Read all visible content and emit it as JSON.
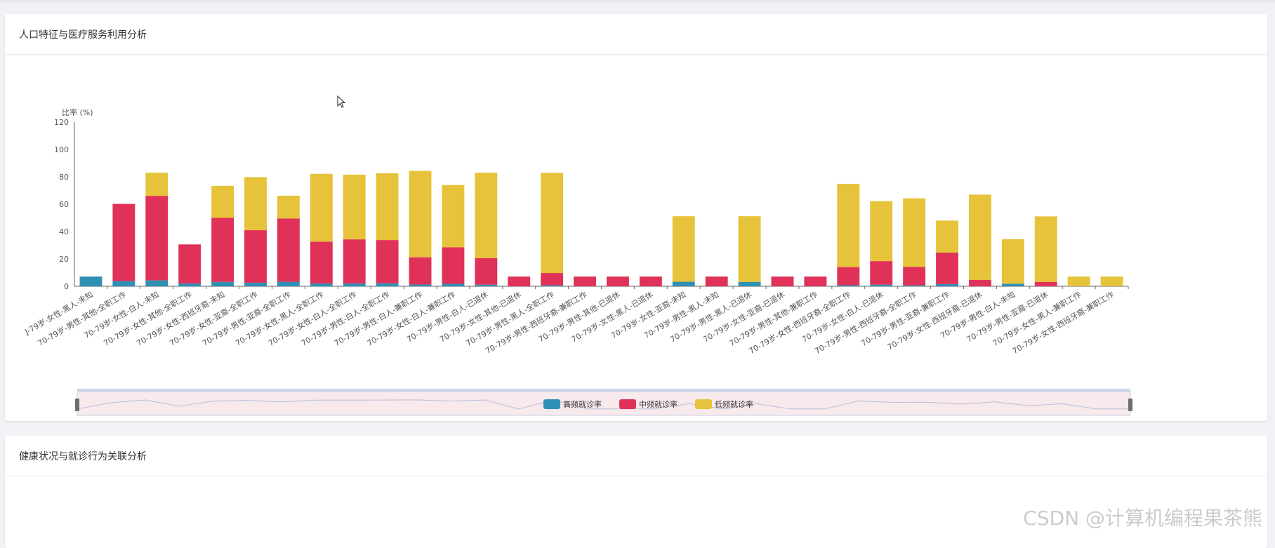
{
  "card1": {
    "title": "人口特征与医疗服务利用分析"
  },
  "card2": {
    "title": "健康状况与就诊行为关联分析"
  },
  "watermark": "CSDN @计算机编程果茶熊",
  "chart_data": {
    "type": "bar",
    "stacked": true,
    "ylabel": "比率 (%)",
    "ylim": [
      0,
      120
    ],
    "yticks": [
      0,
      20,
      40,
      60,
      80,
      100,
      120
    ],
    "legend_position": "bottom-center (inside data zoom)",
    "categories": [
      "J-79岁-女性-黑人-未知",
      "70-79岁-男性-其他-全职工作",
      "70-79岁-女性-白人-未知",
      "70-79岁-女性-其他-全职工作",
      "70-79岁-女性-西班牙裔-未知",
      "70-79岁-女性-亚裔-全职工作",
      "70-79岁-男性-亚裔-全职工作",
      "70-79岁-女性-黑人-全职工作",
      "70-79岁-女性-白人-全职工作",
      "70-79岁-男性-白人-全职工作",
      "70-79岁-男性-白人-兼职工作",
      "70-79岁-女性-白人-兼职工作",
      "70-79岁-男性-白人-已退休",
      "70-79岁-女性-其他-已退休",
      "70-79岁-男性-黑人-全职工作",
      "70-79岁-男性-西班牙裔-兼职工作",
      "70-79岁-男性-其他-已退休",
      "70-79岁-女性-黑人-已退休",
      "70-79岁-女性-亚裔-未知",
      "70-79岁-男性-黑人-未知",
      "70-79岁-男性-黑人-已退休",
      "70-79岁-女性-亚裔-已退休",
      "70-79岁-男性-其他-兼职工作",
      "70-79岁-女性-西班牙裔-全职工作",
      "70-79岁-女性-白人-已退休",
      "70-79岁-男性-西班牙裔-全职工作",
      "70-79岁-男性-亚裔-兼职工作",
      "70-79岁-女性-西班牙裔-已退休",
      "70-79岁-男性-白人-未知",
      "70-79岁-男性-亚裔-已退休",
      "70-79岁-女性-黑人-兼职工作",
      "70-79岁-女性-西班牙裔-兼职工作"
    ],
    "series": [
      {
        "name": "高频就诊率",
        "color": "#2f8fb5",
        "values": [
          7.1,
          3.8,
          4.3,
          2.0,
          3.2,
          2.6,
          3.3,
          2.0,
          2.0,
          2.2,
          1.3,
          1.8,
          1.2,
          0,
          0.7,
          0,
          0,
          0,
          3.3,
          0,
          3.2,
          0,
          0,
          0.8,
          1.2,
          0.7,
          1.6,
          0,
          1.9,
          0,
          0,
          0
        ]
      },
      {
        "name": "中频就诊率",
        "color": "#e03159",
        "values": [
          0,
          56.4,
          61.8,
          28.6,
          46.8,
          38.4,
          46.3,
          30.6,
          32.3,
          31.6,
          19.9,
          26.7,
          19.4,
          7.1,
          9.0,
          7.1,
          7.1,
          7.1,
          0,
          7.1,
          0,
          7.1,
          7.1,
          13.2,
          17.2,
          13.5,
          23.0,
          4.6,
          0,
          3.2,
          0,
          0
        ]
      },
      {
        "name": "低频就诊率",
        "color": "#e6c33a",
        "values": [
          0,
          0,
          16.9,
          0,
          23.4,
          38.8,
          16.6,
          49.6,
          47.3,
          48.8,
          63.1,
          45.5,
          62.4,
          0,
          73.2,
          0,
          0,
          0,
          47.9,
          0,
          48.0,
          0,
          0,
          60.9,
          43.8,
          50.1,
          23.4,
          62.4,
          32.5,
          47.9,
          7.1,
          7.1
        ]
      }
    ],
    "dataZoom": {
      "start": 0,
      "end": 100
    }
  }
}
